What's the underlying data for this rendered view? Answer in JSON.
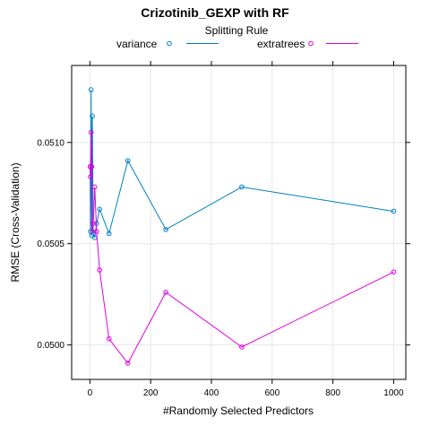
{
  "chart_data": {
    "type": "line",
    "title": "Crizotinib_GEXP with RF",
    "legend": {
      "title": "Splitting Rule",
      "placement": "top",
      "entries": [
        "variance",
        "extratrees"
      ]
    },
    "xlabel": "#Randomly Selected Predictors",
    "ylabel": "RMSE (Cross-Validation)",
    "xlim": [
      -60,
      1040
    ],
    "ylim": [
      0.04983,
      0.05138
    ],
    "xticks": [
      0,
      200,
      400,
      600,
      800,
      1000
    ],
    "yticks": [
      0.05,
      0.0505,
      0.051
    ],
    "ytick_labels": [
      "0.0500",
      "0.0505",
      "0.0510"
    ],
    "grid": true,
    "series": [
      {
        "name": "variance",
        "color": "#0080c0",
        "x": [
          1,
          2,
          4,
          6,
          8,
          11,
          16,
          22,
          32,
          63,
          125,
          250,
          500,
          1000
        ],
        "y": [
          0.05088,
          0.05056,
          0.05126,
          0.05054,
          0.05113,
          0.05055,
          0.05053,
          0.0506,
          0.05067,
          0.05055,
          0.05091,
          0.05057,
          0.05078,
          0.05066
        ]
      },
      {
        "name": "extratrees",
        "color": "#e000e0",
        "x": [
          1,
          2,
          4,
          6,
          8,
          11,
          16,
          22,
          32,
          63,
          125,
          250,
          500,
          1000
        ],
        "y": [
          0.05088,
          0.05083,
          0.05105,
          0.05088,
          0.05056,
          0.0506,
          0.05078,
          0.05056,
          0.05037,
          0.05003,
          0.04991,
          0.05026,
          0.04999,
          0.05036
        ]
      }
    ]
  }
}
